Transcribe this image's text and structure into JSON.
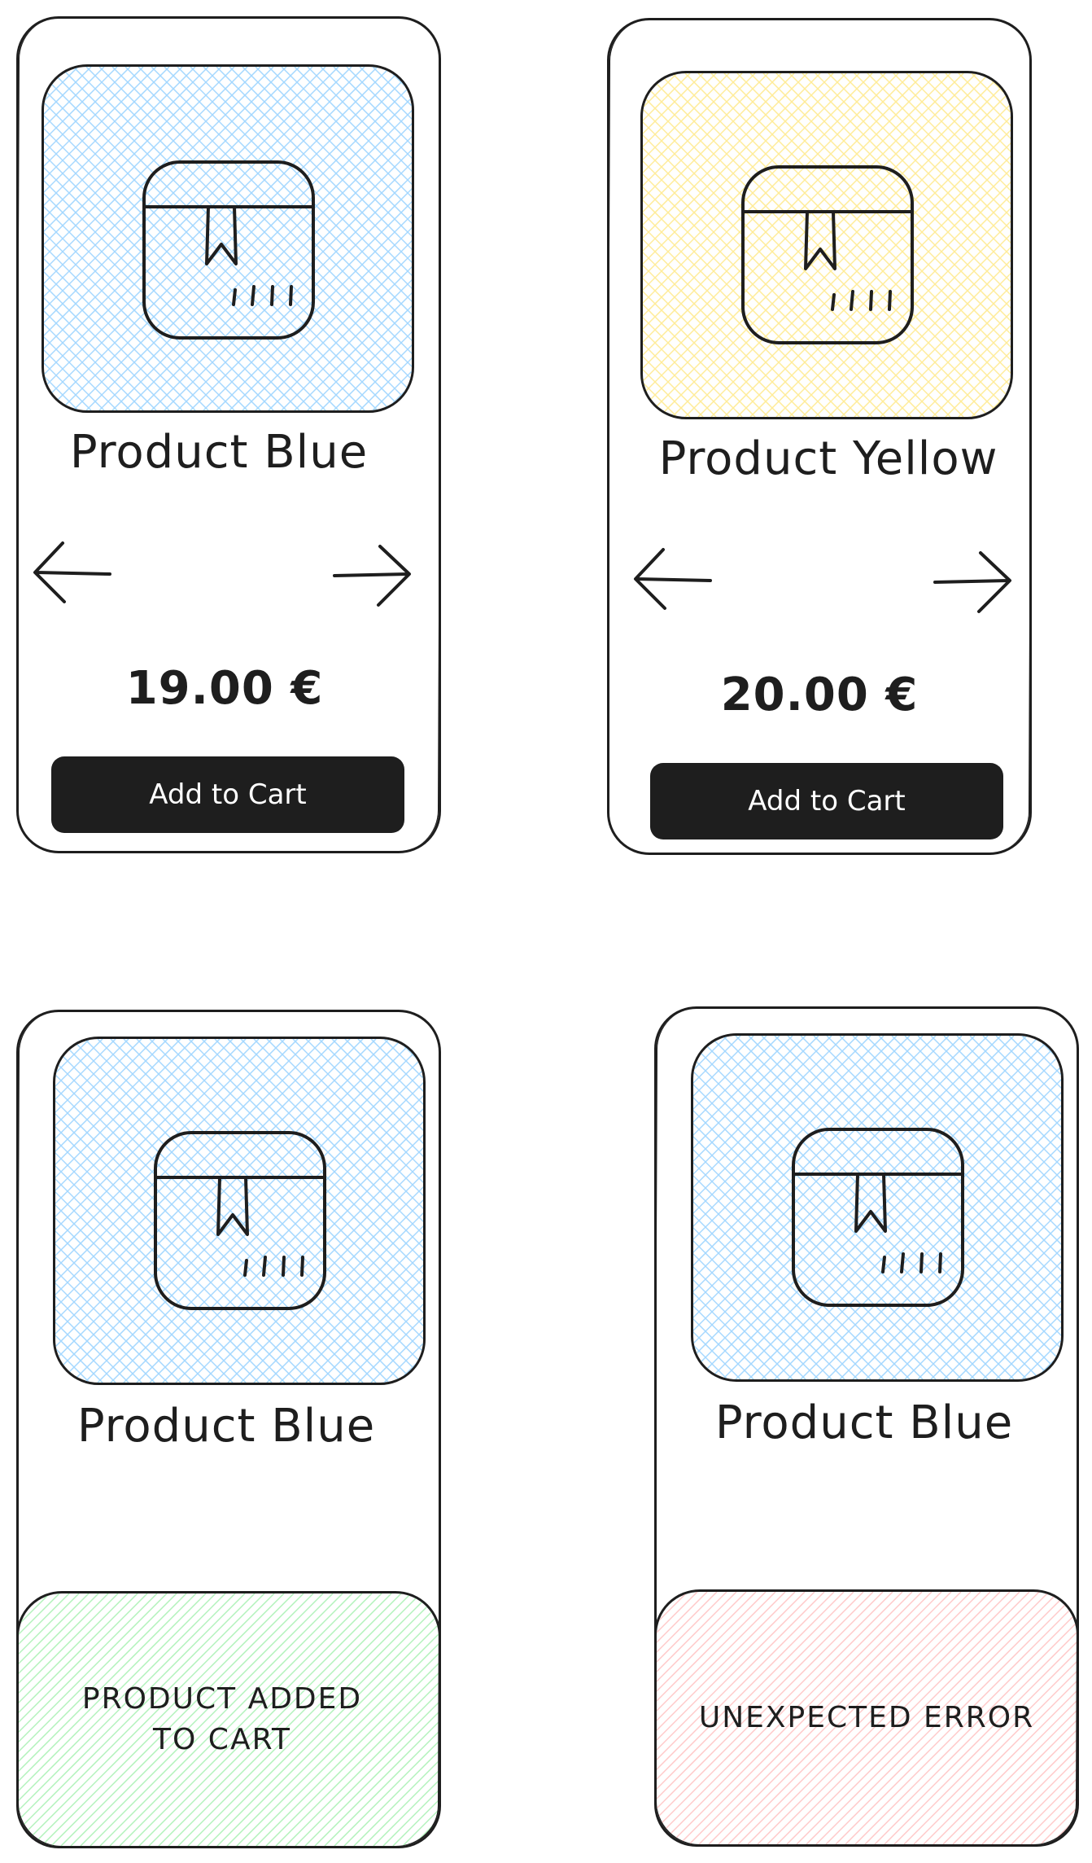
{
  "colors": {
    "ink": "#1e1e1e",
    "blue_hatch": "#a5d8ff",
    "yellow_hatch": "#ffec99",
    "green_hatch": "#b2f2bb",
    "red_hatch": "#ffc9c9"
  },
  "cards": [
    {
      "variant": "product-blue",
      "title": "Product Blue",
      "price": "19.00 €",
      "button_label": "Add to Cart",
      "image_color": "blue",
      "icon": "package-icon"
    },
    {
      "variant": "product-yellow",
      "title": "Product Yellow",
      "price": "20.00 €",
      "button_label": "Add to Cart",
      "image_color": "yellow",
      "icon": "package-icon"
    },
    {
      "variant": "added-to-cart",
      "title": "Product Blue",
      "image_color": "blue",
      "icon": "package-icon",
      "toast_text": "PRODUCT ADDED\nTO CART",
      "toast_color": "green"
    },
    {
      "variant": "error",
      "title": "Product Blue",
      "image_color": "blue",
      "icon": "package-icon",
      "toast_text": "UNEXPECTED ERROR",
      "toast_color": "red"
    }
  ],
  "icons": {
    "prev": "arrow-left-icon",
    "next": "arrow-right-icon"
  }
}
